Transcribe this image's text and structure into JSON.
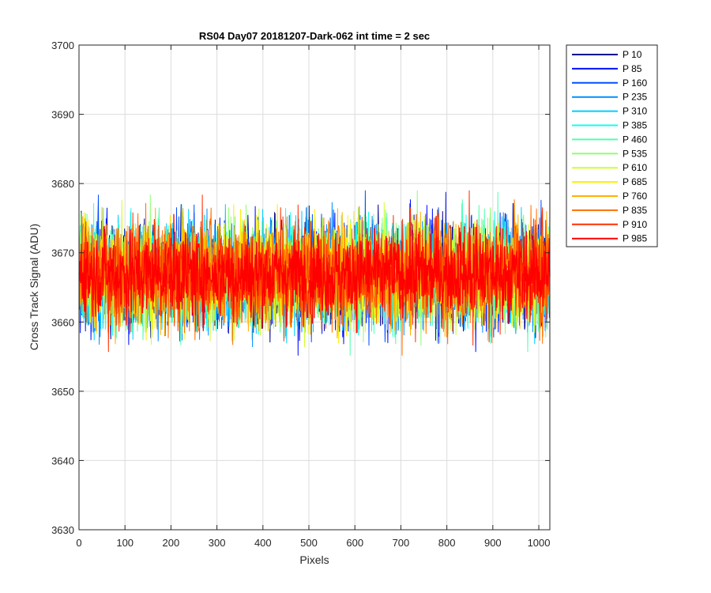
{
  "chart_data": {
    "type": "line",
    "title": "RS04 Day07 20181207-Dark-062 int time = 2 sec",
    "xlabel": "Pixels",
    "ylabel": "Cross Track Signal (ADU)",
    "xlim": [
      0,
      1024
    ],
    "ylim": [
      3630,
      3700
    ],
    "xticks": [
      0,
      100,
      200,
      300,
      400,
      500,
      600,
      700,
      800,
      900,
      1000
    ],
    "yticks": [
      3630,
      3640,
      3650,
      3660,
      3670,
      3680,
      3690,
      3700
    ],
    "grid": true,
    "legend_position": "outside-right",
    "points_per_series": 1024,
    "series": [
      {
        "name": "P 10",
        "color": "#00008F",
        "mean": 3667,
        "spread": 6.8
      },
      {
        "name": "P 85",
        "color": "#0010FF",
        "mean": 3667,
        "spread": 6.8
      },
      {
        "name": "P 160",
        "color": "#0050FF",
        "mean": 3667,
        "spread": 6.8
      },
      {
        "name": "P 235",
        "color": "#0090FF",
        "mean": 3667,
        "spread": 6.8
      },
      {
        "name": "P 310",
        "color": "#00CFFF",
        "mean": 3667,
        "spread": 6.8
      },
      {
        "name": "P 385",
        "color": "#10FFEF",
        "mean": 3667,
        "spread": 6.8
      },
      {
        "name": "P 460",
        "color": "#50FFAF",
        "mean": 3667,
        "spread": 6.8
      },
      {
        "name": "P 535",
        "color": "#90FF70",
        "mean": 3667,
        "spread": 6.8
      },
      {
        "name": "P 610",
        "color": "#CFFF30",
        "mean": 3667,
        "spread": 6.8
      },
      {
        "name": "P 685",
        "color": "#FFEF00",
        "mean": 3667,
        "spread": 6.8
      },
      {
        "name": "P 760",
        "color": "#FFB000",
        "mean": 3667,
        "spread": 6.8
      },
      {
        "name": "P 835",
        "color": "#FF7000",
        "mean": 3667,
        "spread": 6.8
      },
      {
        "name": "P 910",
        "color": "#FF3000",
        "mean": 3667,
        "spread": 6.8
      },
      {
        "name": "P 985",
        "color": "#FF0000",
        "mean": 3667,
        "spread": 5.5
      }
    ]
  }
}
